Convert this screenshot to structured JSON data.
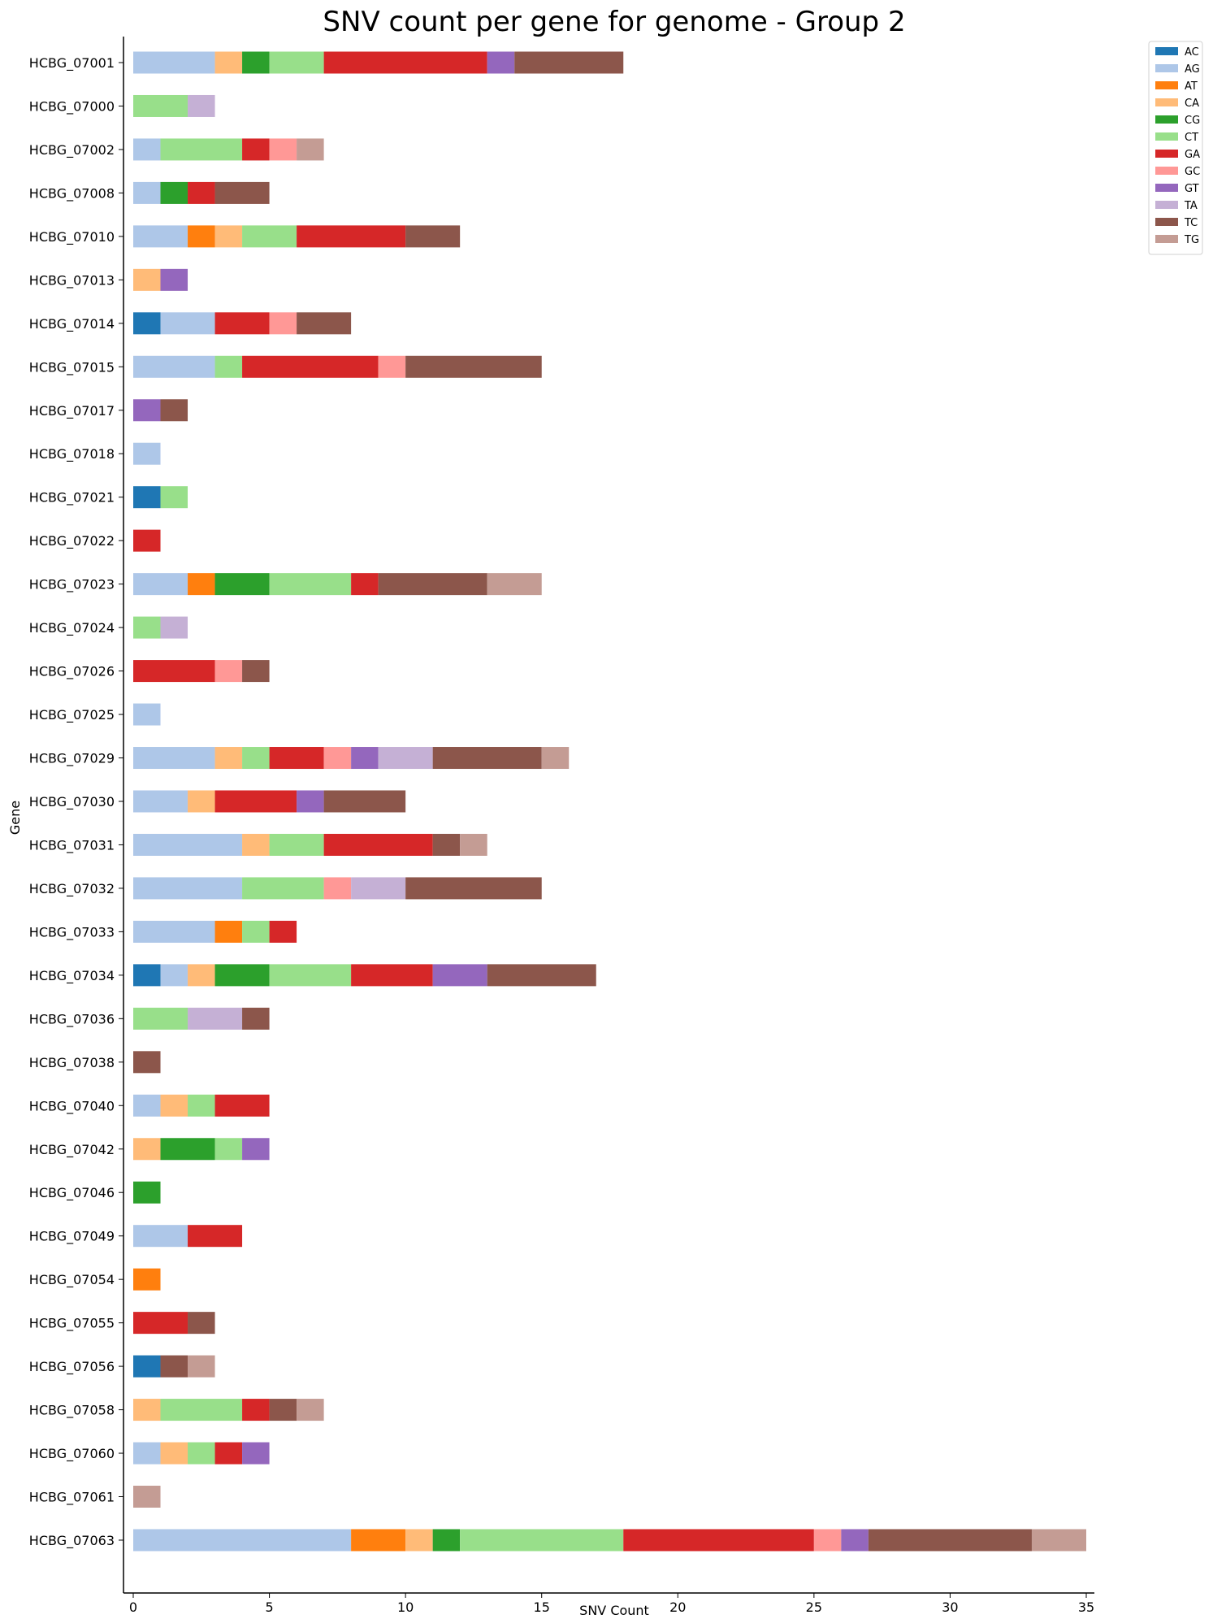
{
  "chart_data": {
    "type": "bar",
    "orientation": "horizontal",
    "stacked": true,
    "title": "SNV count per gene for genome - Group 2",
    "xlabel": "SNV Count",
    "ylabel": "Gene",
    "xlim": [
      0,
      35
    ],
    "xticks": [
      0,
      5,
      10,
      15,
      20,
      25,
      30,
      35
    ],
    "grid": false,
    "legend_position": "top-right outside",
    "categories": [
      "HCBG_07001",
      "HCBG_07000",
      "HCBG_07002",
      "HCBG_07008",
      "HCBG_07010",
      "HCBG_07013",
      "HCBG_07014",
      "HCBG_07015",
      "HCBG_07017",
      "HCBG_07018",
      "HCBG_07021",
      "HCBG_07022",
      "HCBG_07023",
      "HCBG_07024",
      "HCBG_07026",
      "HCBG_07025",
      "HCBG_07029",
      "HCBG_07030",
      "HCBG_07031",
      "HCBG_07032",
      "HCBG_07033",
      "HCBG_07034",
      "HCBG_07036",
      "HCBG_07038",
      "HCBG_07040",
      "HCBG_07042",
      "HCBG_07046",
      "HCBG_07049",
      "HCBG_07054",
      "HCBG_07055",
      "HCBG_07056",
      "HCBG_07058",
      "HCBG_07060",
      "HCBG_07061",
      "HCBG_07063"
    ],
    "series": [
      {
        "name": "AC",
        "color": "#1f77b4",
        "values": [
          0,
          0,
          0,
          0,
          0,
          0,
          1,
          0,
          0,
          0,
          1,
          0,
          0,
          0,
          0,
          0,
          0,
          0,
          0,
          0,
          0,
          1,
          0,
          0,
          0,
          0,
          0,
          0,
          0,
          0,
          1,
          0,
          0,
          0,
          0
        ]
      },
      {
        "name": "AG",
        "color": "#aec7e8",
        "values": [
          3,
          0,
          1,
          1,
          2,
          0,
          2,
          3,
          0,
          1,
          0,
          0,
          2,
          0,
          0,
          1,
          3,
          2,
          4,
          4,
          3,
          1,
          0,
          0,
          1,
          0,
          0,
          2,
          0,
          0,
          0,
          0,
          1,
          0,
          8
        ]
      },
      {
        "name": "AT",
        "color": "#ff7f0e",
        "values": [
          0,
          0,
          0,
          0,
          1,
          0,
          0,
          0,
          0,
          0,
          0,
          0,
          1,
          0,
          0,
          0,
          0,
          0,
          0,
          0,
          1,
          0,
          0,
          0,
          0,
          0,
          0,
          0,
          1,
          0,
          0,
          0,
          0,
          0,
          2
        ]
      },
      {
        "name": "CA",
        "color": "#ffbb78",
        "values": [
          1,
          0,
          0,
          0,
          1,
          1,
          0,
          0,
          0,
          0,
          0,
          0,
          0,
          0,
          0,
          0,
          1,
          1,
          1,
          0,
          0,
          1,
          0,
          0,
          1,
          1,
          0,
          0,
          0,
          0,
          0,
          1,
          1,
          0,
          1
        ]
      },
      {
        "name": "CG",
        "color": "#2ca02c",
        "values": [
          1,
          0,
          0,
          1,
          0,
          0,
          0,
          0,
          0,
          0,
          0,
          0,
          2,
          0,
          0,
          0,
          0,
          0,
          0,
          0,
          0,
          2,
          0,
          0,
          0,
          2,
          1,
          0,
          0,
          0,
          0,
          0,
          0,
          0,
          1
        ]
      },
      {
        "name": "CT",
        "color": "#98df8a",
        "values": [
          2,
          2,
          3,
          0,
          2,
          0,
          0,
          1,
          0,
          0,
          1,
          0,
          3,
          1,
          0,
          0,
          1,
          0,
          2,
          3,
          1,
          3,
          2,
          0,
          1,
          1,
          0,
          0,
          0,
          0,
          0,
          3,
          1,
          0,
          6
        ]
      },
      {
        "name": "GA",
        "color": "#d62728",
        "values": [
          6,
          0,
          1,
          1,
          4,
          0,
          2,
          5,
          0,
          0,
          0,
          1,
          1,
          0,
          3,
          0,
          2,
          3,
          4,
          0,
          1,
          3,
          0,
          0,
          2,
          0,
          0,
          2,
          0,
          2,
          0,
          1,
          1,
          0,
          7
        ]
      },
      {
        "name": "GC",
        "color": "#ff9896",
        "values": [
          0,
          0,
          1,
          0,
          0,
          0,
          1,
          1,
          0,
          0,
          0,
          0,
          0,
          0,
          1,
          0,
          1,
          0,
          0,
          1,
          0,
          0,
          0,
          0,
          0,
          0,
          0,
          0,
          0,
          0,
          0,
          0,
          0,
          0,
          1
        ]
      },
      {
        "name": "GT",
        "color": "#9467bd",
        "values": [
          1,
          0,
          0,
          0,
          0,
          1,
          0,
          0,
          1,
          0,
          0,
          0,
          0,
          0,
          0,
          0,
          1,
          1,
          0,
          0,
          0,
          2,
          0,
          0,
          0,
          1,
          0,
          0,
          0,
          0,
          0,
          0,
          1,
          0,
          1
        ]
      },
      {
        "name": "TA",
        "color": "#c5b0d5",
        "values": [
          0,
          1,
          0,
          0,
          0,
          0,
          0,
          0,
          0,
          0,
          0,
          0,
          0,
          1,
          0,
          0,
          2,
          0,
          0,
          2,
          0,
          0,
          2,
          0,
          0,
          0,
          0,
          0,
          0,
          0,
          0,
          0,
          0,
          0,
          0
        ]
      },
      {
        "name": "TC",
        "color": "#8c564b",
        "values": [
          4,
          0,
          0,
          2,
          2,
          0,
          2,
          5,
          1,
          0,
          0,
          0,
          4,
          0,
          1,
          0,
          4,
          3,
          1,
          5,
          0,
          4,
          1,
          1,
          0,
          0,
          0,
          0,
          0,
          1,
          1,
          1,
          0,
          0,
          6
        ]
      },
      {
        "name": "TG",
        "color": "#c49c94",
        "values": [
          0,
          0,
          1,
          0,
          0,
          0,
          0,
          0,
          0,
          0,
          0,
          0,
          2,
          0,
          0,
          0,
          1,
          0,
          1,
          0,
          0,
          0,
          0,
          0,
          0,
          0,
          0,
          0,
          0,
          0,
          1,
          1,
          0,
          1,
          2
        ]
      }
    ]
  }
}
